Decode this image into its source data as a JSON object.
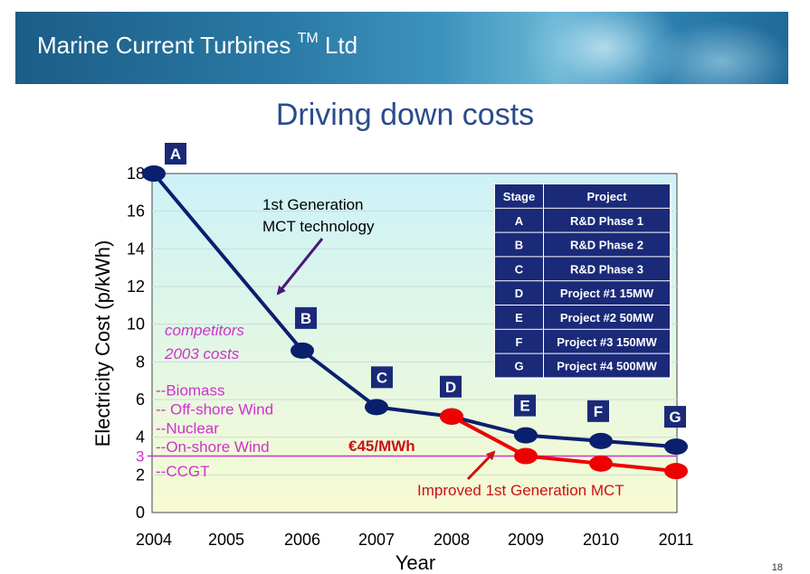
{
  "banner": {
    "title": "Marine Current Turbines",
    "trademark": "TM",
    "suffix": "Ltd"
  },
  "slide": {
    "title": "Driving down costs",
    "page_number": "18"
  },
  "colors": {
    "gen1_series": "#0a1f6e",
    "improved_series": "#ee0000",
    "label_box": "#1a2a78",
    "competitor_text": "#cc33cc",
    "table_bg": "#1a2a78"
  },
  "chart_data": {
    "type": "line",
    "xlabel": "Year",
    "ylabel": "Electricity Cost (p/kWh)",
    "x_categories": [
      "2004",
      "2005",
      "2006",
      "2007",
      "2008",
      "2009",
      "2010",
      "2011"
    ],
    "ylim": [
      0,
      18
    ],
    "yticks": [
      "0",
      "2",
      "4",
      "6",
      "8",
      "10",
      "12",
      "14",
      "16",
      "18"
    ],
    "series": [
      {
        "name": "1st Generation MCT technology",
        "color": "#0a1f6e",
        "points": [
          {
            "x": "2004",
            "y": 18,
            "label": "A"
          },
          {
            "x": "2006",
            "y": 8.6,
            "label": "B"
          },
          {
            "x": "2007",
            "y": 5.6,
            "label": "C"
          },
          {
            "x": "2008",
            "y": 5.1,
            "label": "D"
          },
          {
            "x": "2009",
            "y": 4.1,
            "label": "E"
          },
          {
            "x": "2010",
            "y": 3.8,
            "label": "F"
          },
          {
            "x": "2011",
            "y": 3.5,
            "label": "G"
          }
        ]
      },
      {
        "name": "Improved 1st Generation MCT",
        "color": "#ee0000",
        "points": [
          {
            "x": "2008",
            "y": 5.1
          },
          {
            "x": "2009",
            "y": 3.0
          },
          {
            "x": "2010",
            "y": 2.6
          },
          {
            "x": "2011",
            "y": 2.2
          }
        ]
      }
    ],
    "reference_line": {
      "y": 3,
      "label": "3",
      "color": "#cc33cc"
    },
    "annotations": {
      "gen1_line1": "1st Generation",
      "gen1_line2": "MCT technology",
      "improved": "Improved 1st Generation MCT",
      "price": "€45/MWh"
    },
    "competitors": {
      "header_line1": "competitors",
      "header_line2": "2003 costs",
      "items": [
        {
          "label": "--Biomass",
          "y": 6.5
        },
        {
          "label": "-- Off-shore Wind",
          "y": 5.5
        },
        {
          "label": "--Nuclear",
          "y": 4.5
        },
        {
          "label": "--On-shore Wind",
          "y": 3.5
        },
        {
          "label": "--CCGT",
          "y": 2.2
        }
      ]
    },
    "table": {
      "headers": [
        "Stage",
        "Project"
      ],
      "rows": [
        [
          "A",
          "R&D Phase 1"
        ],
        [
          "B",
          "R&D Phase 2"
        ],
        [
          "C",
          "R&D Phase 3"
        ],
        [
          "D",
          "Project #1 15MW"
        ],
        [
          "E",
          "Project #2  50MW"
        ],
        [
          "F",
          "Project #3  150MW"
        ],
        [
          "G",
          "Project #4  500MW"
        ]
      ]
    }
  }
}
